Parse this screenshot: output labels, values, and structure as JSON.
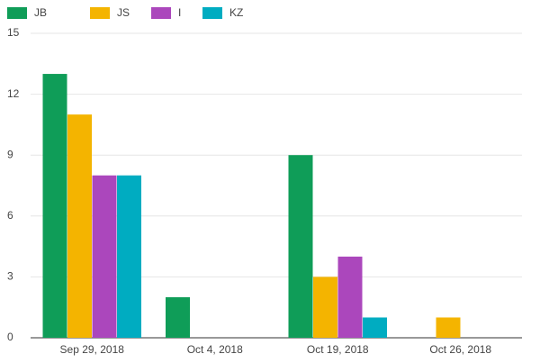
{
  "chart_data": {
    "type": "bar",
    "categories": [
      "Sep 29, 2018",
      "Oct 4, 2018",
      "Oct 19, 2018",
      "Oct 26, 2018"
    ],
    "series": [
      {
        "name": "JB",
        "color": "#0f9d58",
        "values": [
          13,
          2,
          9,
          0
        ]
      },
      {
        "name": "JS",
        "color": "#f4b400",
        "values": [
          11,
          0,
          3,
          1
        ]
      },
      {
        "name": "I",
        "color": "#ab47bc",
        "values": [
          8,
          0,
          4,
          0
        ]
      },
      {
        "name": "KZ",
        "color": "#00acc1",
        "values": [
          8,
          0,
          1,
          0
        ]
      }
    ],
    "ylim": [
      0,
      15
    ],
    "yticks": [
      0,
      3,
      6,
      9,
      12,
      15
    ],
    "grid": true,
    "legend": "top"
  }
}
